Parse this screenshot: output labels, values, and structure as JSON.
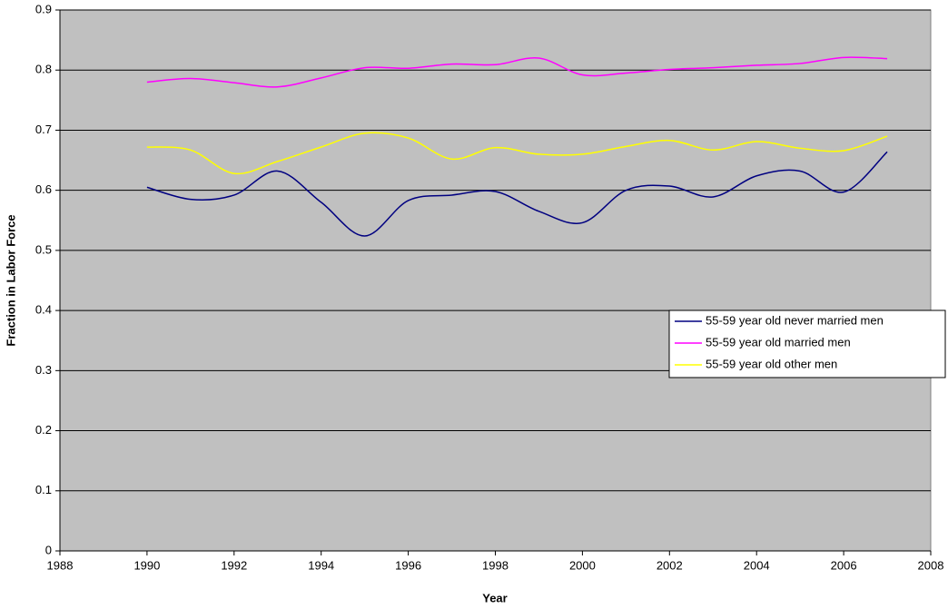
{
  "chart_data": {
    "type": "line",
    "x_label": "Year",
    "y_label": "Fraction in Labor Force",
    "x": [
      1990,
      1991,
      1992,
      1993,
      1994,
      1995,
      1996,
      1997,
      1998,
      1999,
      2000,
      2001,
      2002,
      2003,
      2004,
      2005,
      2006,
      2007
    ],
    "series": [
      {
        "name": "55-59 year old never married men",
        "color": "#000080",
        "values": [
          0.605,
          0.585,
          0.592,
          0.632,
          0.58,
          0.524,
          0.583,
          0.592,
          0.598,
          0.565,
          0.546,
          0.6,
          0.607,
          0.589,
          0.624,
          0.632,
          0.597,
          0.664
        ]
      },
      {
        "name": "55-59 year old married men",
        "color": "#ff00ff",
        "values": [
          0.78,
          0.786,
          0.779,
          0.772,
          0.787,
          0.804,
          0.803,
          0.81,
          0.809,
          0.82,
          0.792,
          0.795,
          0.801,
          0.804,
          0.808,
          0.811,
          0.821,
          0.819
        ]
      },
      {
        "name": "55-59 year old other men",
        "color": "#ffff00",
        "values": [
          0.672,
          0.667,
          0.628,
          0.648,
          0.672,
          0.695,
          0.687,
          0.652,
          0.671,
          0.66,
          0.66,
          0.673,
          0.683,
          0.667,
          0.681,
          0.67,
          0.666,
          0.69
        ]
      }
    ],
    "xlim": [
      1988,
      2008
    ],
    "xticks": [
      1988,
      1990,
      1992,
      1994,
      1996,
      1998,
      2000,
      2002,
      2004,
      2006,
      2008
    ],
    "ylim": [
      0,
      0.9
    ],
    "yticks": [
      0,
      0.1,
      0.2,
      0.3,
      0.4,
      0.5,
      0.6,
      0.7,
      0.8,
      0.9
    ],
    "grid": true,
    "smooth": true,
    "legend": "right",
    "background": "#c0c0c0"
  }
}
